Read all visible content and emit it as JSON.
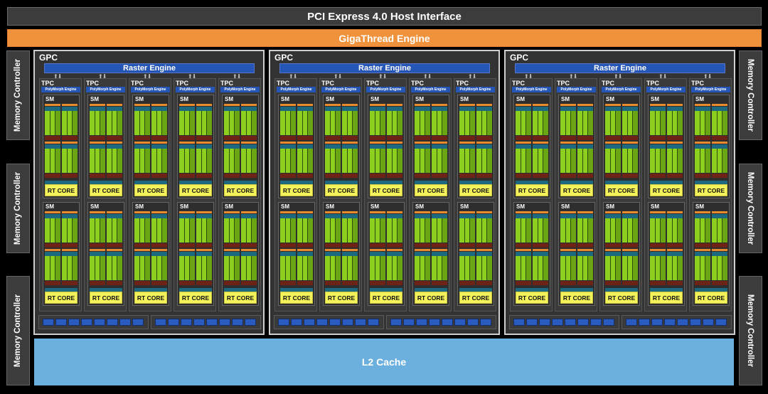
{
  "header": {
    "host_interface": "PCI Express 4.0 Host Interface",
    "gigathread": "GigaThread Engine"
  },
  "memory_controllers": {
    "left": [
      "Memory Controller",
      "Memory Controller",
      "Memory Controller"
    ],
    "right": [
      "Memory Controller",
      "Memory Controller",
      "Memory Controller"
    ]
  },
  "gpc": {
    "label": "GPC",
    "raster_engine": "Raster Engine",
    "tpc_label": "TPC",
    "polymorph": "PolyMorph Engine",
    "sm_label": "SM",
    "rt_core": "RT CORE",
    "count": 3,
    "tpcs_per_gpc": 5,
    "sms_per_tpc": 2,
    "memory_blocks_per_group": 8
  },
  "l2": {
    "label": "L2 Cache"
  },
  "colors": {
    "background": "#000000",
    "block_gray": "#3c3c3c",
    "gigathread_orange": "#f0913c",
    "raster_blue": "#2556b6",
    "cuda_green": "#8ccf1f",
    "rt_core_yellow": "#f4f25a",
    "l2_blue": "#6aafdd"
  }
}
